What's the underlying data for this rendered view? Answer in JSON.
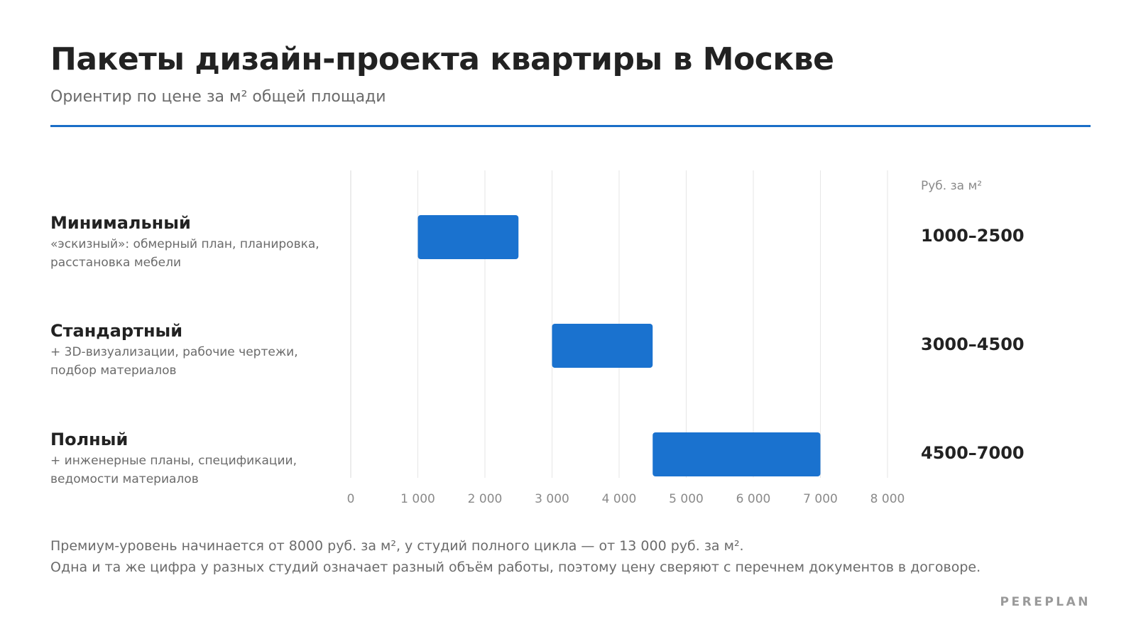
{
  "header": {
    "title": "Пакеты дизайн-проекта квартиры в Москве",
    "subtitle": "Ориентир по цене за м² общей площади"
  },
  "chart_data": {
    "type": "bar",
    "orientation": "horizontal",
    "bar_style": "floating-range",
    "categories": [
      "Минимальный",
      "Стандартный",
      "Полный"
    ],
    "descriptions": [
      "«эскизный»: обмерный план, планировка, расстановка мебели",
      "+ 3D-визуализации, рабочие чертежи, подбор материалов",
      "+ инженерные планы, спецификации, ведомости материалов"
    ],
    "ranges": [
      [
        1000,
        2500
      ],
      [
        3000,
        4500
      ],
      [
        4500,
        7000
      ]
    ],
    "range_labels": [
      "1000–2500",
      "3000–4500",
      "4500–7000"
    ],
    "unit_label": "Руб. за м²",
    "xlim": [
      0,
      8000
    ],
    "x_ticks": [
      0,
      1000,
      2000,
      3000,
      4000,
      5000,
      6000,
      7000,
      8000
    ],
    "x_tick_labels": [
      "0",
      "1 000",
      "2 000",
      "3 000",
      "4 000",
      "5 000",
      "6 000",
      "7 000",
      "8 000"
    ],
    "grid": true,
    "bar_color": "#1a72cf",
    "grid_color": "#e6e6e6"
  },
  "footnote": {
    "line1": "Премиум-уровень начинается от 8000 руб. за м², у студий полного цикла — от 13 000 руб. за м².",
    "line2": "Одна и та же цифра у разных студий означает разный объём работы, поэтому цену сверяют с перечнем документов в договоре."
  },
  "brand": "PEREPLAN",
  "colors": {
    "accent": "#1a6ec7",
    "text": "#222222",
    "muted": "#6b6b6b"
  }
}
